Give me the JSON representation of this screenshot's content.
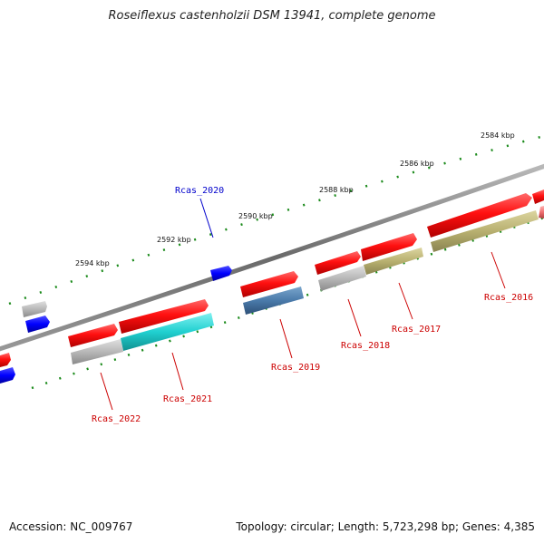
{
  "title": "Roseiflexus castenholzii DSM 13941, complete genome",
  "accession_line": "Accession: NC_009767",
  "stats_line": "Topology: circular; Length: 5,723,298 bp; Genes: 4,385",
  "colors": {
    "backbone": "#7a7a7a",
    "tick": "#1a8a1a",
    "label_red": "#cc0000",
    "label_blue": "#0000cc",
    "gene_red": "#ff1a1a",
    "gene_gray": "#b5b5b5",
    "gene_blue": "#0000ff",
    "gene_cyan": "#20d0d0",
    "gene_steel": "#4a7aaa",
    "gene_olive": "#b8b070",
    "gene_pink": "#f07070"
  },
  "scale_labels": [
    {
      "id": "tick-2584",
      "text": "2584 kbp"
    },
    {
      "id": "tick-2586",
      "text": "2586 kbp"
    },
    {
      "id": "tick-2588",
      "text": "2588 kbp"
    },
    {
      "id": "tick-2590",
      "text": "2590 kbp"
    },
    {
      "id": "tick-2592",
      "text": "2592 kbp"
    },
    {
      "id": "tick-2594",
      "text": "2594 kbp"
    }
  ],
  "gene_labels": [
    {
      "id": "rcas-2020",
      "text": "Rcas_2020"
    },
    {
      "id": "rcas-2016",
      "text": "Rcas_2016"
    },
    {
      "id": "rcas-2017",
      "text": "Rcas_2017"
    },
    {
      "id": "rcas-2018",
      "text": "Rcas_2018"
    },
    {
      "id": "rcas-2019",
      "text": "Rcas_2019"
    },
    {
      "id": "rcas-2021",
      "text": "Rcas_2021"
    },
    {
      "id": "rcas-2022",
      "text": "Rcas_2022"
    }
  ]
}
